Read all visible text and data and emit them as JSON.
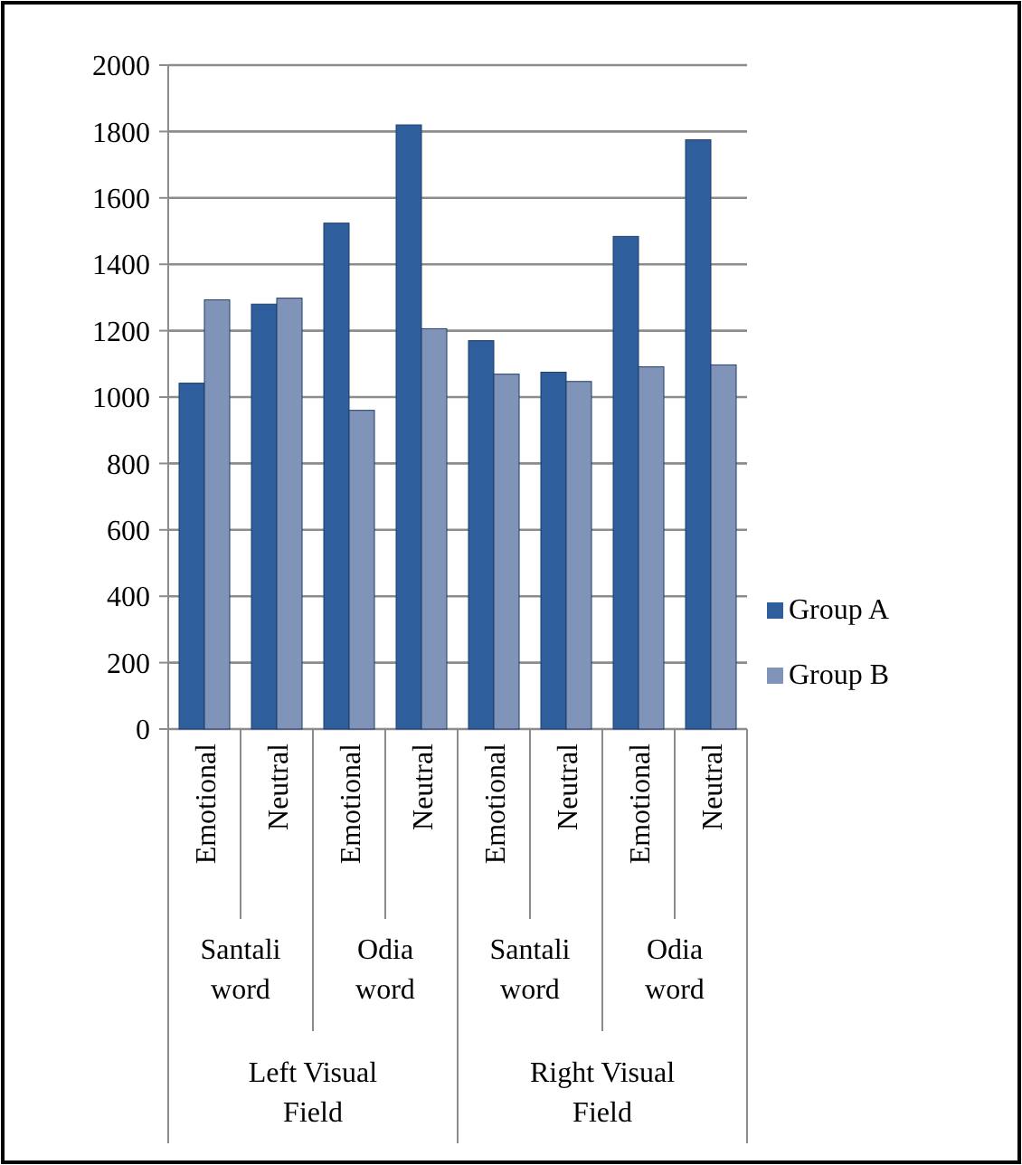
{
  "chart_data": {
    "type": "bar",
    "categories": [
      "Emotional",
      "Neutral",
      "Emotional",
      "Neutral",
      "Emotional",
      "Neutral",
      "Emotional",
      "Neutral"
    ],
    "series": [
      {
        "name": "Group A",
        "color": "#2e5e9c",
        "values": [
          1042,
          1280,
          1524,
          1820,
          1170,
          1075,
          1484,
          1775
        ]
      },
      {
        "name": "Group B",
        "color": "#8093b8",
        "values": [
          1293,
          1298,
          960,
          1206,
          1069,
          1047,
          1091,
          1097
        ]
      }
    ],
    "annotations": [
      "Santali word",
      "Odia word",
      "Santali word",
      "Odia word",
      "Left   Visual Field",
      "Right   Visual Field"
    ],
    "ylim": [
      0,
      2000
    ],
    "yticks": [
      0,
      200,
      400,
      600,
      800,
      1000,
      1200,
      1400,
      1600,
      1800,
      2000
    ],
    "grid": "y",
    "legend": "right"
  }
}
